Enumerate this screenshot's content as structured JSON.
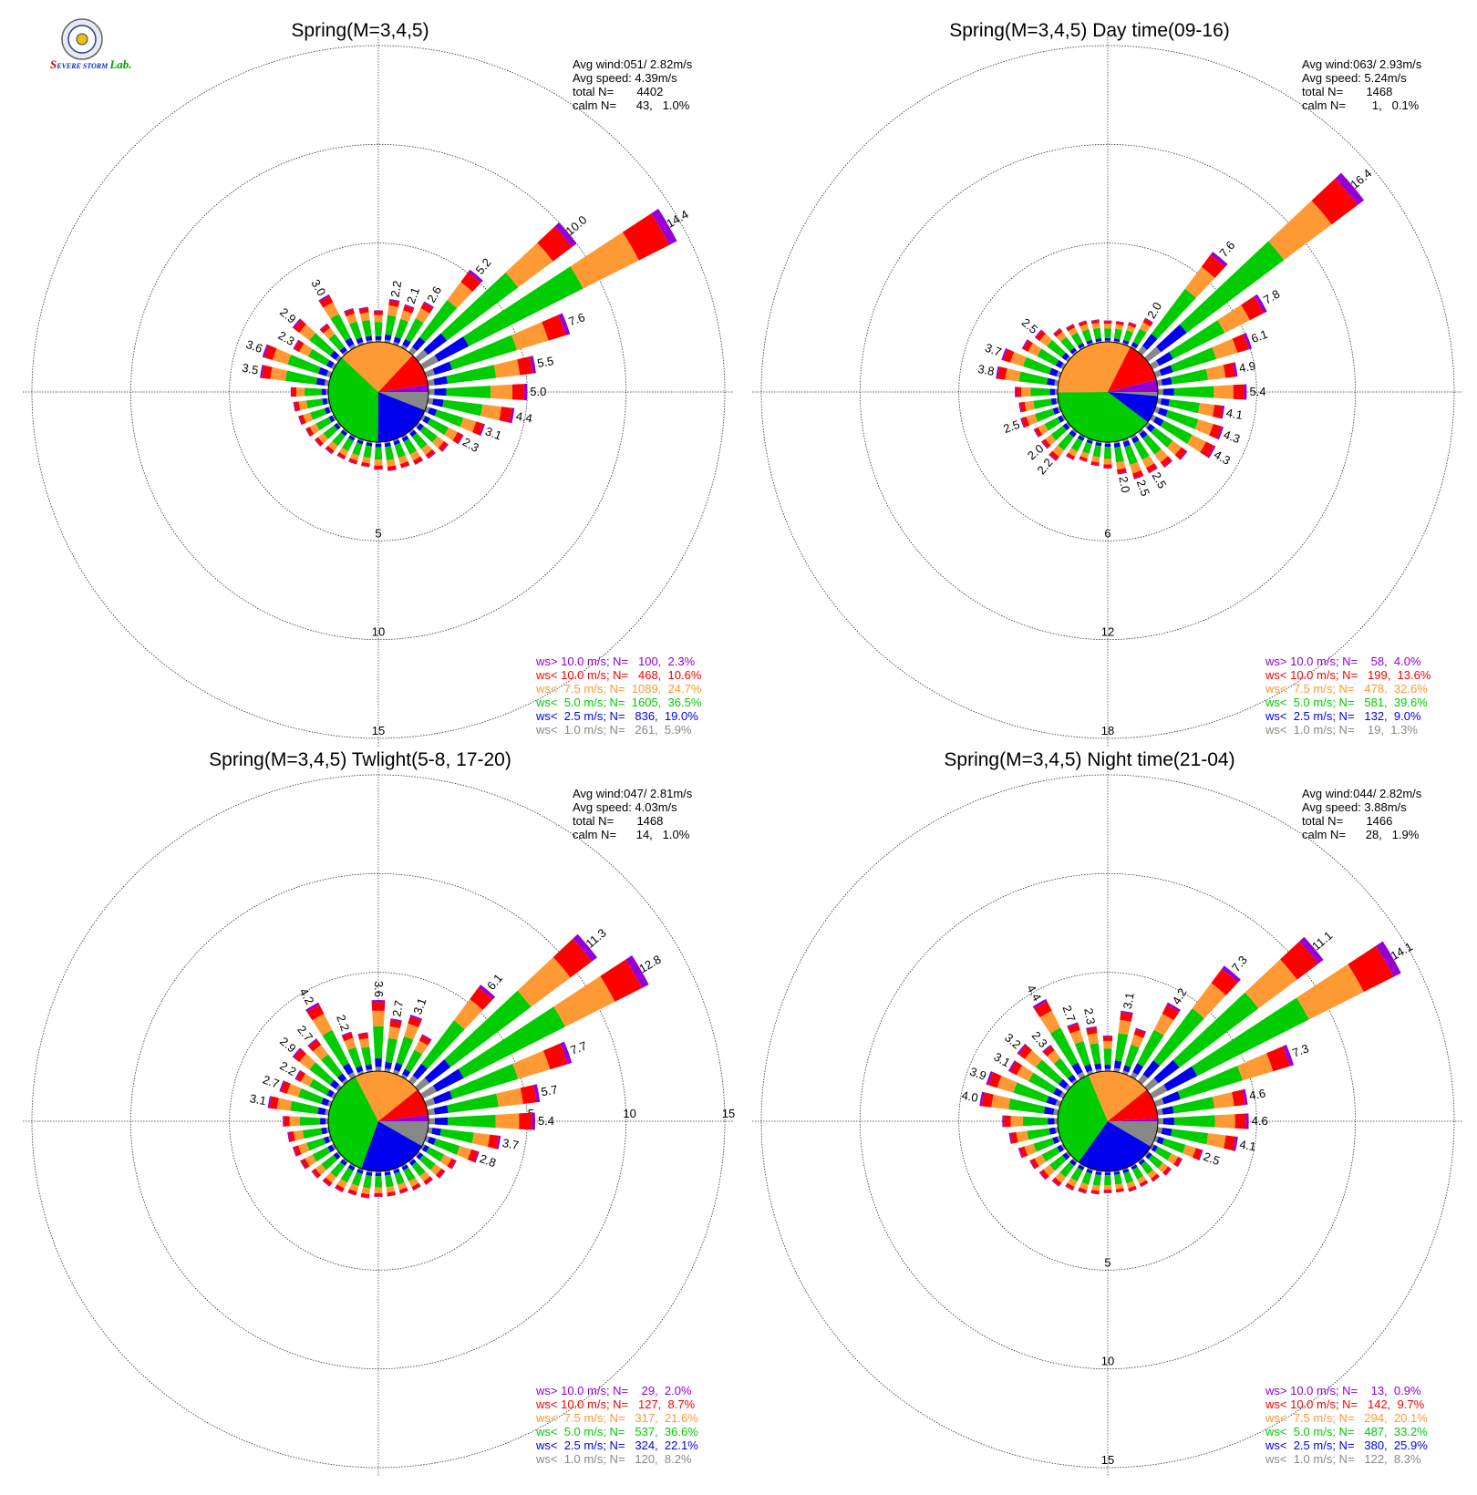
{
  "colors": {
    "gt10": "#9400d3",
    "lt10": "#ff0000",
    "lt75": "#ff9933",
    "lt5": "#00cc00",
    "lt25": "#0000ee",
    "lt1": "#888888"
  },
  "legend_labels": [
    "ws> 10.0 m/s; N=",
    "ws< 10.0 m/s; N=",
    "ws<  7.5 m/s; N=",
    "ws<  5.0 m/s; N=",
    "ws<  2.5 m/s; N=",
    "ws<  1.0 m/s; N="
  ],
  "logo": {
    "icon": "severe-storm-lab-logo",
    "text": "Severe Storm Lab."
  },
  "chart_data": [
    {
      "type": "windrose",
      "title": "Spring(M=3,4,5)",
      "info": {
        "avg_wind": "Avg wind:051/ 2.82m/s",
        "avg_speed": "Avg speed: 4.39m/s",
        "total": "total N=       4402",
        "calm": "calm N=      43,   1.0%"
      },
      "rings": [
        5,
        10,
        15
      ],
      "ring_label_side": "bottom",
      "legend": [
        {
          "n": "100",
          "pct": "2.3%"
        },
        {
          "n": "468",
          "pct": "10.6%"
        },
        {
          "n": "1089",
          "pct": "24.7%"
        },
        {
          "n": "1605",
          "pct": "36.5%"
        },
        {
          "n": "836",
          "pct": "19.0%"
        },
        {
          "n": "261",
          "pct": "5.9%"
        }
      ],
      "pie": [
        5.9,
        19.0,
        36.5,
        24.7,
        10.6,
        2.3
      ],
      "bars": [
        {
          "dir": 10,
          "total": 2.2,
          "label": "2.2"
        },
        {
          "dir": 20,
          "total": 2.1,
          "label": "2.1"
        },
        {
          "dir": 30,
          "total": 2.6,
          "label": "2.6"
        },
        {
          "dir": 40,
          "total": 5.2,
          "label": "5.2"
        },
        {
          "dir": 50,
          "total": 10.0,
          "label": "10.0"
        },
        {
          "dir": 60,
          "total": 14.4,
          "label": "14.4"
        },
        {
          "dir": 70,
          "total": 7.6,
          "label": "7.6"
        },
        {
          "dir": 80,
          "total": 5.5,
          "label": "5.5"
        },
        {
          "dir": 90,
          "total": 5.0,
          "label": "5.0"
        },
        {
          "dir": 100,
          "total": 4.4,
          "label": "4.4"
        },
        {
          "dir": 110,
          "total": 3.1,
          "label": "3.1"
        },
        {
          "dir": 120,
          "total": 2.3,
          "label": "2.3"
        },
        {
          "dir": 130,
          "total": 1.9
        },
        {
          "dir": 140,
          "total": 1.7
        },
        {
          "dir": 150,
          "total": 1.6
        },
        {
          "dir": 160,
          "total": 1.5
        },
        {
          "dir": 170,
          "total": 1.5
        },
        {
          "dir": 180,
          "total": 1.4
        },
        {
          "dir": 190,
          "total": 1.3
        },
        {
          "dir": 200,
          "total": 1.3
        },
        {
          "dir": 210,
          "total": 1.3
        },
        {
          "dir": 220,
          "total": 1.4
        },
        {
          "dir": 230,
          "total": 1.5
        },
        {
          "dir": 240,
          "total": 1.6
        },
        {
          "dir": 250,
          "total": 1.7
        },
        {
          "dir": 260,
          "total": 1.8
        },
        {
          "dir": 270,
          "total": 1.9
        },
        {
          "dir": 280,
          "total": 3.5,
          "label": "3.5"
        },
        {
          "dir": 290,
          "total": 3.6,
          "label": "3.6"
        },
        {
          "dir": 300,
          "total": 2.3,
          "label": "2.3"
        },
        {
          "dir": 310,
          "total": 2.9,
          "label": "2.9"
        },
        {
          "dir": 320,
          "total": 1.8
        },
        {
          "dir": 330,
          "total": 3.0,
          "label": "3.0"
        },
        {
          "dir": 340,
          "total": 1.9
        },
        {
          "dir": 350,
          "total": 1.8
        },
        {
          "dir": 360,
          "total": 1.6
        }
      ]
    },
    {
      "type": "windrose",
      "title": "Spring(M=3,4,5) Day time(09-16)",
      "info": {
        "avg_wind": "Avg wind:063/ 2.93m/s",
        "avg_speed": "Avg speed: 5.24m/s",
        "total": "total N=       1468",
        "calm": "calm N=        1,   0.1%"
      },
      "rings": [
        6,
        12,
        18
      ],
      "ring_label_side": "bottom",
      "legend": [
        {
          "n": "58",
          "pct": "4.0%"
        },
        {
          "n": "199",
          "pct": "13.6%"
        },
        {
          "n": "478",
          "pct": "32.6%"
        },
        {
          "n": "581",
          "pct": "39.6%"
        },
        {
          "n": "132",
          "pct": "9.0%"
        },
        {
          "n": "19",
          "pct": "1.3%"
        }
      ],
      "pie": [
        1.3,
        9.0,
        39.6,
        32.6,
        13.6,
        4.0
      ],
      "bars": [
        {
          "dir": 10,
          "total": 1.3
        },
        {
          "dir": 20,
          "total": 1.4
        },
        {
          "dir": 30,
          "total": 2.0,
          "label": "2.0"
        },
        {
          "dir": 40,
          "total": 7.6,
          "label": "7.6"
        },
        {
          "dir": 50,
          "total": 16.4,
          "label": "16.4"
        },
        {
          "dir": 60,
          "total": 7.8,
          "label": "7.8"
        },
        {
          "dir": 70,
          "total": 6.1,
          "label": "6.1"
        },
        {
          "dir": 80,
          "total": 4.9,
          "label": "4.9"
        },
        {
          "dir": 90,
          "total": 5.4,
          "label": "5.4"
        },
        {
          "dir": 100,
          "total": 4.1,
          "label": "4.1"
        },
        {
          "dir": 110,
          "total": 4.3,
          "label": "4.3"
        },
        {
          "dir": 120,
          "total": 4.3,
          "label": "4.3"
        },
        {
          "dir": 130,
          "total": 3.0
        },
        {
          "dir": 140,
          "total": 2.7
        },
        {
          "dir": 150,
          "total": 2.5,
          "label": "2.5"
        },
        {
          "dir": 160,
          "total": 2.5,
          "label": "2.5"
        },
        {
          "dir": 170,
          "total": 2.0,
          "label": "2.0"
        },
        {
          "dir": 180,
          "total": 1.6
        },
        {
          "dir": 190,
          "total": 1.5
        },
        {
          "dir": 200,
          "total": 1.4
        },
        {
          "dir": 210,
          "total": 1.6
        },
        {
          "dir": 220,
          "total": 2.2,
          "label": "2.2"
        },
        {
          "dir": 230,
          "total": 2.0,
          "label": "2.0"
        },
        {
          "dir": 240,
          "total": 2.0
        },
        {
          "dir": 250,
          "total": 2.5,
          "label": "2.5"
        },
        {
          "dir": 260,
          "total": 2.4
        },
        {
          "dir": 270,
          "total": 2.6
        },
        {
          "dir": 280,
          "total": 3.8,
          "label": "3.8"
        },
        {
          "dir": 290,
          "total": 3.7,
          "label": "3.7"
        },
        {
          "dir": 300,
          "total": 2.8
        },
        {
          "dir": 310,
          "total": 2.5,
          "label": "2.5"
        },
        {
          "dir": 320,
          "total": 1.8
        },
        {
          "dir": 330,
          "total": 1.6
        },
        {
          "dir": 340,
          "total": 1.5
        },
        {
          "dir": 350,
          "total": 1.4
        },
        {
          "dir": 360,
          "total": 1.3
        }
      ]
    },
    {
      "type": "windrose",
      "title": "Spring(M=3,4,5) Twlight(5-8, 17-20)",
      "info": {
        "avg_wind": "Avg wind:047/ 2.81m/s",
        "avg_speed": "Avg speed: 4.03m/s",
        "total": "total N=       1468",
        "calm": "calm N=      14,   1.0%"
      },
      "rings": [
        5,
        10,
        15
      ],
      "ring_label_side": "right",
      "legend": [
        {
          "n": "29",
          "pct": "2.0%"
        },
        {
          "n": "127",
          "pct": "8.7%"
        },
        {
          "n": "317",
          "pct": "21.6%"
        },
        {
          "n": "537",
          "pct": "36.6%"
        },
        {
          "n": "324",
          "pct": "22.1%"
        },
        {
          "n": "120",
          "pct": "8.2%"
        }
      ],
      "pie": [
        8.2,
        22.1,
        36.6,
        21.6,
        8.7,
        2.0
      ],
      "bars": [
        {
          "dir": 10,
          "total": 2.7,
          "label": "2.7"
        },
        {
          "dir": 20,
          "total": 3.1,
          "label": "3.1"
        },
        {
          "dir": 30,
          "total": 2.4
        },
        {
          "dir": 40,
          "total": 6.1,
          "label": "6.1"
        },
        {
          "dir": 50,
          "total": 11.3,
          "label": "11.3"
        },
        {
          "dir": 60,
          "total": 12.8,
          "label": "12.8"
        },
        {
          "dir": 70,
          "total": 7.7,
          "label": "7.7"
        },
        {
          "dir": 80,
          "total": 5.7,
          "label": "5.7"
        },
        {
          "dir": 90,
          "total": 5.4,
          "label": "5.4"
        },
        {
          "dir": 100,
          "total": 3.7,
          "label": "3.7"
        },
        {
          "dir": 110,
          "total": 2.8,
          "label": "2.8"
        },
        {
          "dir": 120,
          "total": 1.9
        },
        {
          "dir": 130,
          "total": 1.7
        },
        {
          "dir": 140,
          "total": 1.5
        },
        {
          "dir": 150,
          "total": 1.4
        },
        {
          "dir": 160,
          "total": 1.3
        },
        {
          "dir": 170,
          "total": 1.3
        },
        {
          "dir": 180,
          "total": 1.3
        },
        {
          "dir": 190,
          "total": 1.4
        },
        {
          "dir": 200,
          "total": 1.4
        },
        {
          "dir": 210,
          "total": 1.5
        },
        {
          "dir": 220,
          "total": 1.6
        },
        {
          "dir": 230,
          "total": 1.7
        },
        {
          "dir": 240,
          "total": 1.9
        },
        {
          "dir": 250,
          "total": 2.0
        },
        {
          "dir": 260,
          "total": 2.1
        },
        {
          "dir": 270,
          "total": 2.3
        },
        {
          "dir": 280,
          "total": 3.1,
          "label": "3.1"
        },
        {
          "dir": 290,
          "total": 2.7,
          "label": "2.7"
        },
        {
          "dir": 300,
          "total": 2.2,
          "label": "2.2"
        },
        {
          "dir": 310,
          "total": 2.9,
          "label": "2.9"
        },
        {
          "dir": 320,
          "total": 2.7,
          "label": "2.7"
        },
        {
          "dir": 330,
          "total": 4.2,
          "label": "4.2"
        },
        {
          "dir": 340,
          "total": 2.2,
          "label": "2.2"
        },
        {
          "dir": 350,
          "total": 2.0
        },
        {
          "dir": 360,
          "total": 3.6,
          "label": "3.6"
        }
      ]
    },
    {
      "type": "windrose",
      "title": "Spring(M=3,4,5) Night time(21-04)",
      "info": {
        "avg_wind": "Avg wind:044/ 2.82m/s",
        "avg_speed": "Avg speed: 3.88m/s",
        "total": "total N=       1466",
        "calm": "calm N=      28,   1.9%"
      },
      "rings": [
        5,
        10,
        15
      ],
      "ring_label_side": "bottom",
      "legend": [
        {
          "n": "13",
          "pct": "0.9%"
        },
        {
          "n": "142",
          "pct": "9.7%"
        },
        {
          "n": "294",
          "pct": "20.1%"
        },
        {
          "n": "487",
          "pct": "33.2%"
        },
        {
          "n": "380",
          "pct": "25.9%"
        },
        {
          "n": "122",
          "pct": "8.3%"
        }
      ],
      "pie": [
        8.3,
        25.9,
        33.2,
        20.1,
        9.7,
        0.9
      ],
      "bars": [
        {
          "dir": 10,
          "total": 3.1,
          "label": "3.1"
        },
        {
          "dir": 20,
          "total": 2.4
        },
        {
          "dir": 30,
          "total": 4.2,
          "label": "4.2"
        },
        {
          "dir": 40,
          "total": 7.3,
          "label": "7.3"
        },
        {
          "dir": 50,
          "total": 11.1,
          "label": "11.1"
        },
        {
          "dir": 60,
          "total": 14.1,
          "label": "14.1"
        },
        {
          "dir": 70,
          "total": 7.3,
          "label": "7.3"
        },
        {
          "dir": 80,
          "total": 4.6,
          "label": "4.6"
        },
        {
          "dir": 90,
          "total": 4.6,
          "label": "4.6"
        },
        {
          "dir": 100,
          "total": 4.1,
          "label": "4.1"
        },
        {
          "dir": 110,
          "total": 2.5,
          "label": "2.5"
        },
        {
          "dir": 120,
          "total": 1.7
        },
        {
          "dir": 130,
          "total": 1.5
        },
        {
          "dir": 140,
          "total": 1.3
        },
        {
          "dir": 150,
          "total": 1.2
        },
        {
          "dir": 160,
          "total": 1.2
        },
        {
          "dir": 170,
          "total": 1.1
        },
        {
          "dir": 180,
          "total": 1.1
        },
        {
          "dir": 190,
          "total": 1.2
        },
        {
          "dir": 200,
          "total": 1.3
        },
        {
          "dir": 210,
          "total": 1.4
        },
        {
          "dir": 220,
          "total": 1.6
        },
        {
          "dir": 230,
          "total": 1.8
        },
        {
          "dir": 240,
          "total": 1.9
        },
        {
          "dir": 250,
          "total": 2.2
        },
        {
          "dir": 260,
          "total": 2.5
        },
        {
          "dir": 270,
          "total": 2.8
        },
        {
          "dir": 280,
          "total": 4.0,
          "label": "4.0"
        },
        {
          "dir": 290,
          "total": 3.9,
          "label": "3.9"
        },
        {
          "dir": 300,
          "total": 3.1,
          "label": "3.1"
        },
        {
          "dir": 310,
          "total": 3.2,
          "label": "3.2"
        },
        {
          "dir": 320,
          "total": 2.3,
          "label": "2.3"
        },
        {
          "dir": 330,
          "total": 4.4,
          "label": "4.4"
        },
        {
          "dir": 340,
          "total": 2.7,
          "label": "2.7"
        },
        {
          "dir": 350,
          "total": 2.3,
          "label": "2.3"
        },
        {
          "dir": 360,
          "total": 1.8
        }
      ]
    }
  ]
}
